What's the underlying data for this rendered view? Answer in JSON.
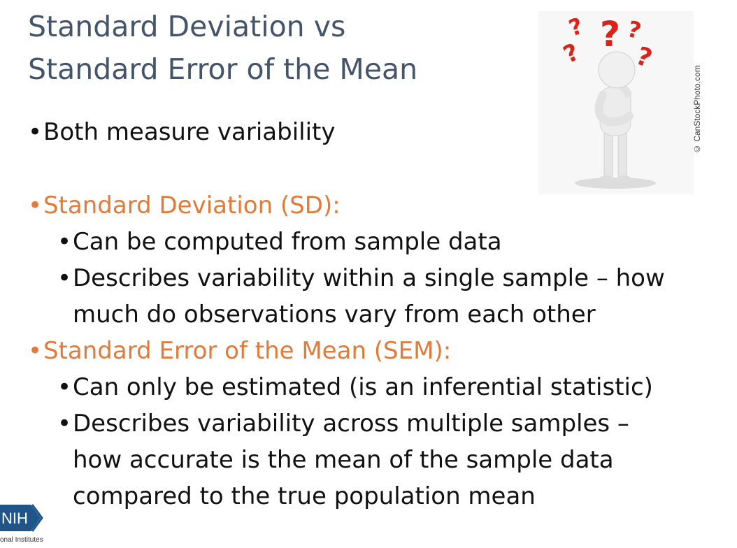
{
  "slide": {
    "title_lines": [
      "Standard Deviation vs",
      "Standard Error of the Mean"
    ],
    "bullets": {
      "both": "Both measure variability",
      "sd_heading": "Standard Deviation (SD):",
      "sd_point1": "Can be computed from sample data",
      "sd_point2_line1": "Describes variability within a single sample – how",
      "sd_point2_line2": "much do observations vary from each other",
      "sem_heading": "Standard Error of the Mean (SEM):",
      "sem_point1": "Can only be estimated (is an inferential statistic)",
      "sem_point2_line1": "Describes variability across multiple samples –",
      "sem_point2_line2": "how accurate is the mean of the sample data",
      "sem_point2_line3": "compared to the true population mean"
    },
    "bullet_symbol": "•"
  },
  "image": {
    "credit": "© CanStockPhoto.com",
    "icon": "thinking-person-with-question-marks-icon"
  },
  "logo": {
    "text": "NIH",
    "caption": "onal Institutes",
    "icon": "nih-logo-icon"
  },
  "colors": {
    "title": "#44546a",
    "accent": "#e07b39",
    "body": "#111111",
    "question_marks": "#d9241b"
  }
}
